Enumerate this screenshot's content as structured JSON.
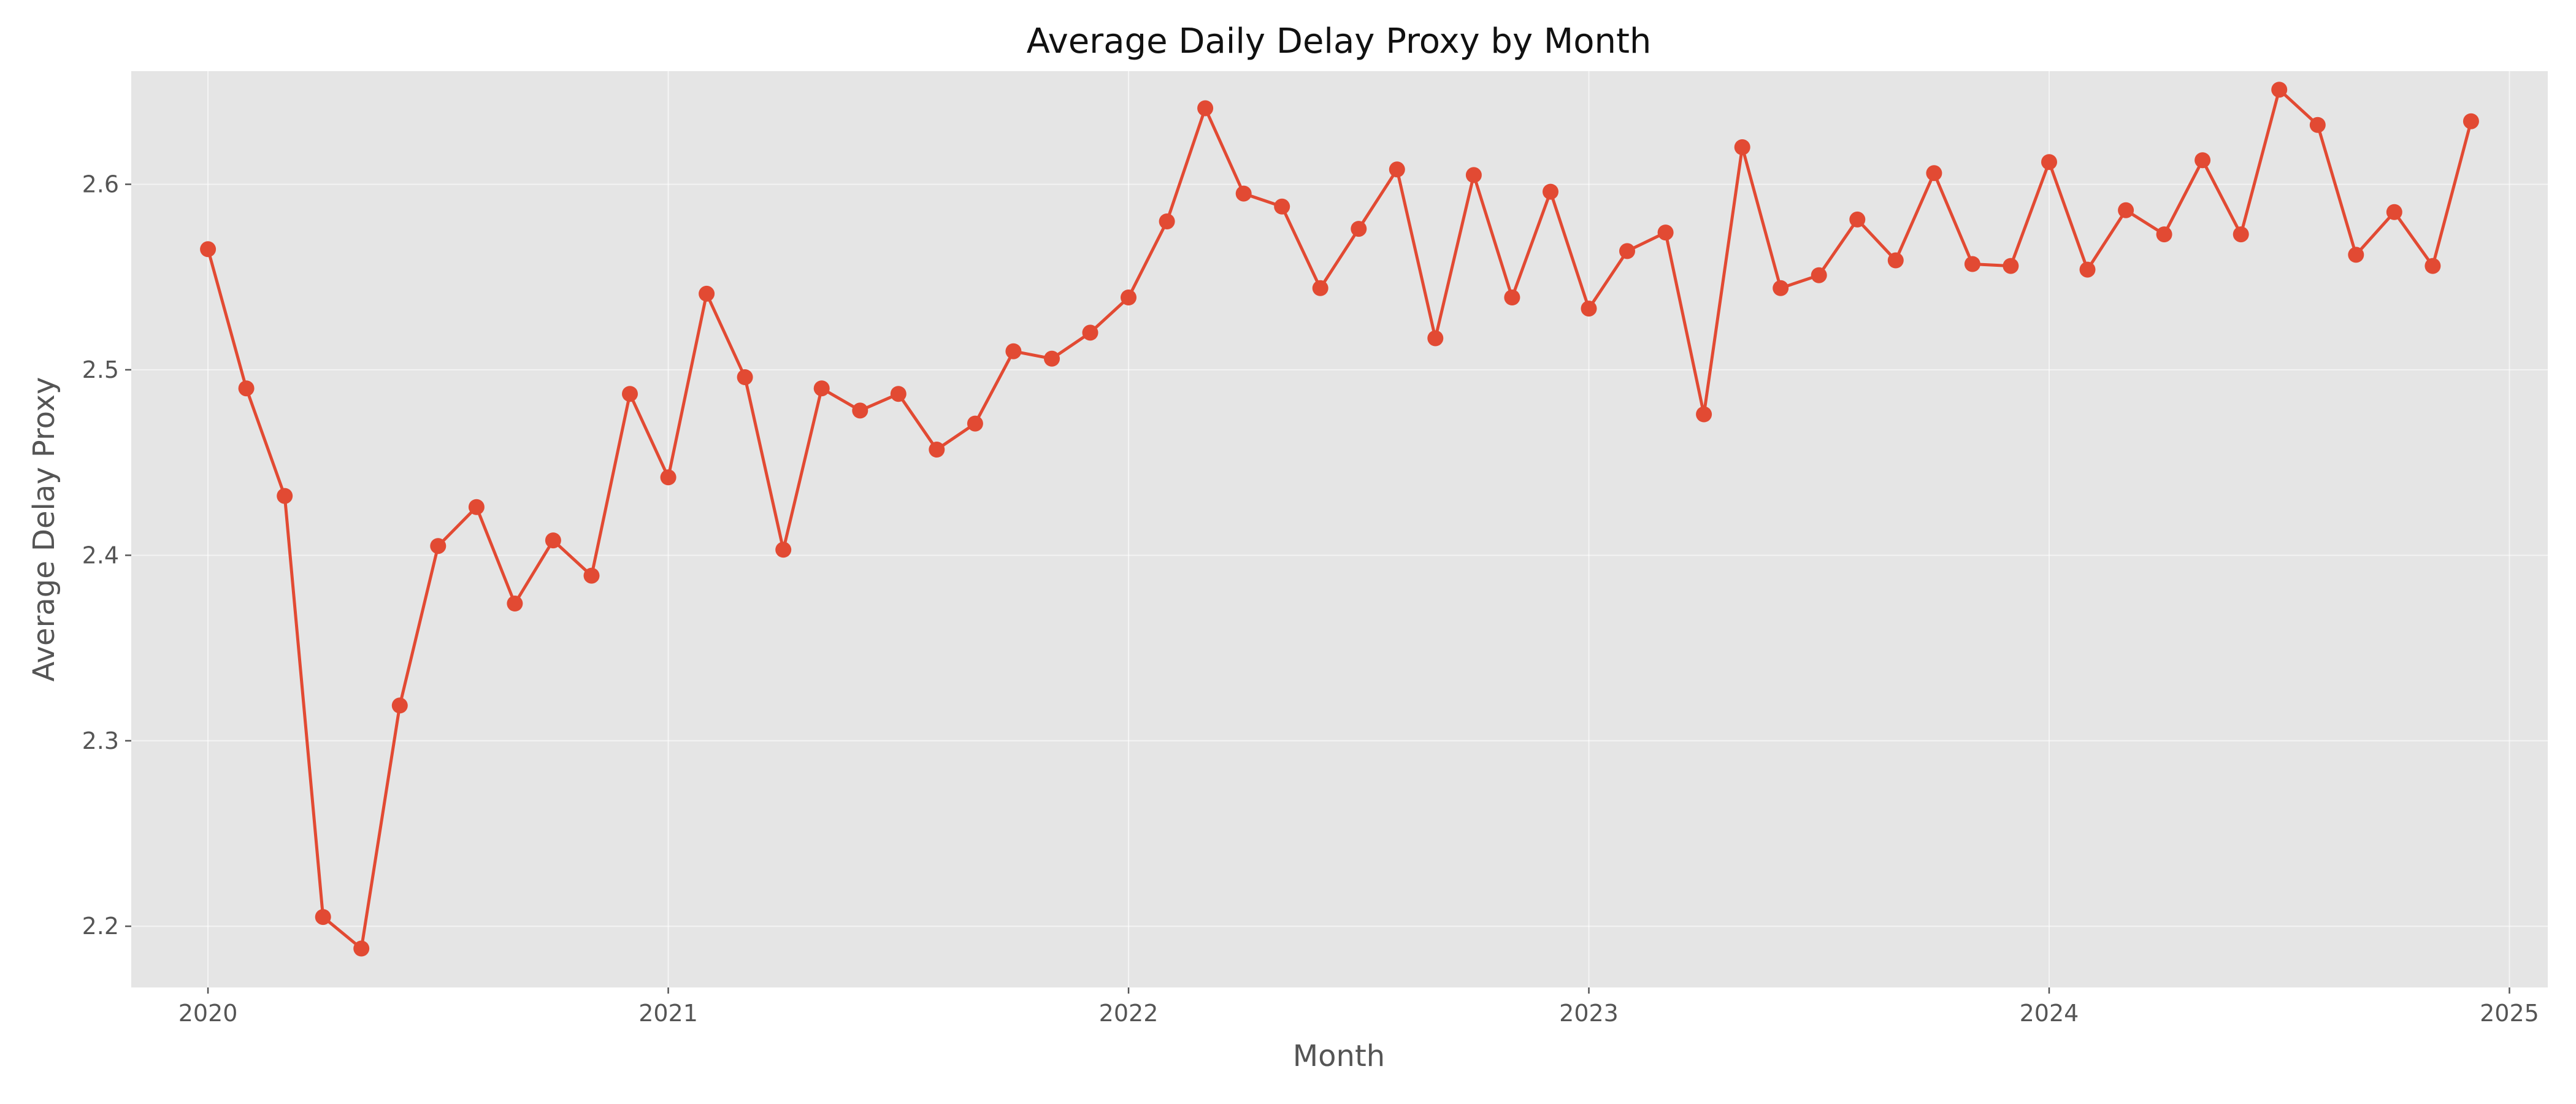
{
  "chart_data": {
    "type": "line",
    "title": "Average Daily Delay Proxy by Month",
    "xlabel": "Month",
    "ylabel": "Average Delay Proxy",
    "x_ticks": [
      "2020",
      "2021",
      "2022",
      "2023",
      "2024",
      "2025"
    ],
    "y_ticks": [
      "2.2",
      "2.3",
      "2.4",
      "2.5",
      "2.6"
    ],
    "ylim": [
      2.167,
      2.661
    ],
    "xlim": [
      "2019-11",
      "2025-02"
    ],
    "grid": true,
    "colors": {
      "line": "#E24A33",
      "plot_background": "#E5E5E5",
      "grid": "#FFFFFF"
    },
    "series": [
      {
        "x": [
          "2020-01",
          "2020-02",
          "2020-03",
          "2020-04",
          "2020-05",
          "2020-06",
          "2020-07",
          "2020-08",
          "2020-09",
          "2020-10",
          "2020-11",
          "2020-12",
          "2021-01",
          "2021-02",
          "2021-03",
          "2021-04",
          "2021-05",
          "2021-06",
          "2021-07",
          "2021-08",
          "2021-09",
          "2021-10",
          "2021-11",
          "2021-12",
          "2022-01",
          "2022-02",
          "2022-03",
          "2022-04",
          "2022-05",
          "2022-06",
          "2022-07",
          "2022-08",
          "2022-09",
          "2022-10",
          "2022-11",
          "2022-12",
          "2023-01",
          "2023-02",
          "2023-03",
          "2023-04",
          "2023-05",
          "2023-06",
          "2023-07",
          "2023-08",
          "2023-09",
          "2023-10",
          "2023-11",
          "2023-12",
          "2024-01",
          "2024-02",
          "2024-03",
          "2024-04",
          "2024-05",
          "2024-06",
          "2024-07",
          "2024-08",
          "2024-09",
          "2024-10",
          "2024-11",
          "2024-12"
        ],
        "values": [
          2.565,
          2.49,
          2.432,
          2.205,
          2.188,
          2.319,
          2.405,
          2.426,
          2.374,
          2.408,
          2.389,
          2.487,
          2.442,
          2.541,
          2.496,
          2.403,
          2.49,
          2.478,
          2.487,
          2.457,
          2.471,
          2.51,
          2.506,
          2.52,
          2.539,
          2.58,
          2.641,
          2.595,
          2.588,
          2.544,
          2.576,
          2.608,
          2.517,
          2.605,
          2.539,
          2.596,
          2.533,
          2.564,
          2.574,
          2.476,
          2.62,
          2.544,
          2.551,
          2.581,
          2.559,
          2.606,
          2.557,
          2.556,
          2.612,
          2.554,
          2.586,
          2.573,
          2.613,
          2.573,
          2.651,
          2.632,
          2.562,
          2.585,
          2.556,
          2.634
        ]
      }
    ]
  }
}
